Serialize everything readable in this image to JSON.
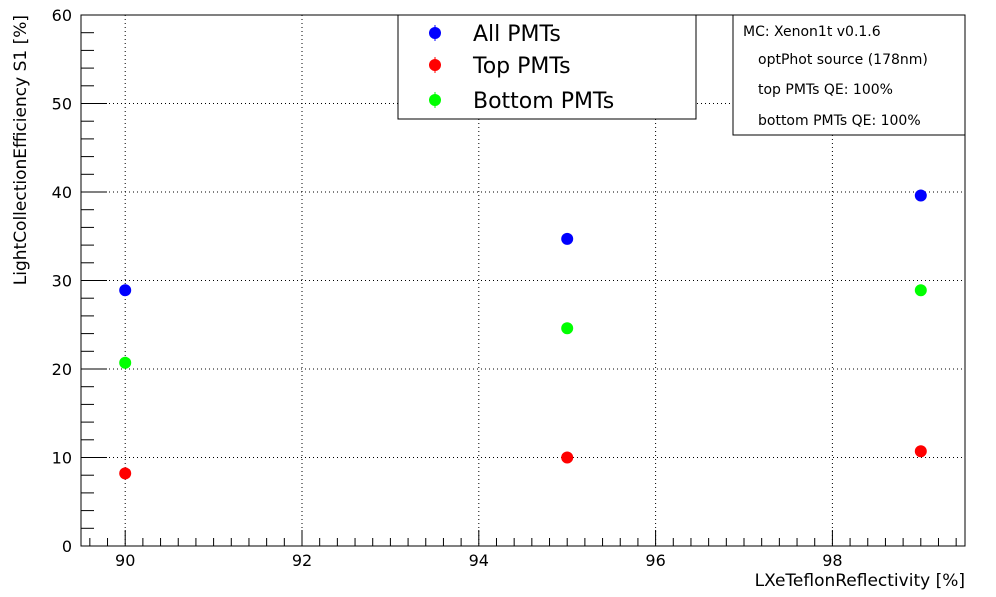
{
  "chart_data": {
    "type": "scatter",
    "xlabel": "LXeTeflonReflectivity [%]",
    "ylabel": "LightCollectionEfficiency S1 [%]",
    "xlim": [
      89.5,
      99.5
    ],
    "ylim": [
      0,
      60
    ],
    "x_ticks": [
      "90",
      "92",
      "94",
      "96",
      "98"
    ],
    "y_ticks": [
      "0",
      "10",
      "20",
      "30",
      "40",
      "50",
      "60"
    ],
    "grid": true,
    "legend_position": "top-center",
    "series": [
      {
        "name": "All PMTs",
        "color": "#0000ff",
        "x": [
          90,
          95,
          99
        ],
        "y": [
          28.9,
          34.7,
          39.6
        ]
      },
      {
        "name": "Top PMTs",
        "color": "#ff0000",
        "x": [
          90,
          95,
          99
        ],
        "y": [
          8.2,
          10.0,
          10.7
        ]
      },
      {
        "name": "Bottom PMTs",
        "color": "#00ff00",
        "x": [
          90,
          95,
          99
        ],
        "y": [
          20.7,
          24.6,
          28.9
        ]
      }
    ],
    "info_box": [
      "MC: Xenon1t v0.1.6",
      "optPhot source (178nm)",
      "top PMTs QE: 100%",
      "bottom PMTs QE: 100%"
    ]
  }
}
